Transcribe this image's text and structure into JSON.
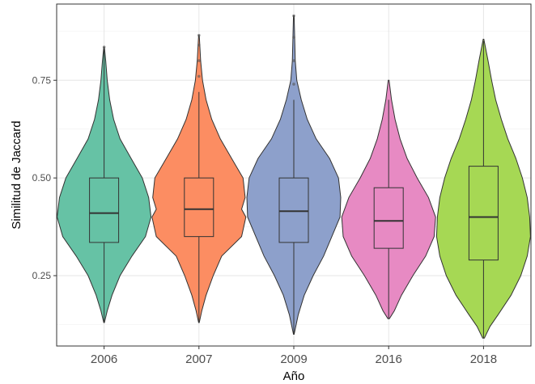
{
  "chart_data": {
    "type": "violin",
    "xlabel": "Año",
    "ylabel": "Similitud de Jaccard",
    "categories": [
      "2006",
      "2007",
      "2009",
      "2016",
      "2018"
    ],
    "ylim": [
      0.07,
      0.945
    ],
    "yticks": [
      0.25,
      0.5,
      0.75
    ],
    "ytick_labels": [
      "0.25",
      "0.50",
      "0.75"
    ],
    "grid": true,
    "legend": "none",
    "series": [
      {
        "category": "2006",
        "color": "#66c2a5",
        "box": {
          "q1": 0.335,
          "median": 0.41,
          "q3": 0.5,
          "whisker_low": 0.13,
          "whisker_high": 0.83
        },
        "outliers": [
          0.835
        ],
        "density": [
          [
            0.13,
            0.002
          ],
          [
            0.16,
            0.02
          ],
          [
            0.2,
            0.05
          ],
          [
            0.25,
            0.1
          ],
          [
            0.3,
            0.175
          ],
          [
            0.35,
            0.26
          ],
          [
            0.4,
            0.295
          ],
          [
            0.45,
            0.28
          ],
          [
            0.5,
            0.24
          ],
          [
            0.55,
            0.17
          ],
          [
            0.6,
            0.1
          ],
          [
            0.65,
            0.06
          ],
          [
            0.7,
            0.035
          ],
          [
            0.75,
            0.02
          ],
          [
            0.8,
            0.01
          ],
          [
            0.835,
            0.002
          ]
        ]
      },
      {
        "category": "2007",
        "color": "#fc8d62",
        "box": {
          "q1": 0.35,
          "median": 0.42,
          "q3": 0.5,
          "whisker_low": 0.13,
          "whisker_high": 0.72
        },
        "outliers": [
          0.76,
          0.8,
          0.84,
          0.865
        ],
        "density": [
          [
            0.13,
            0.002
          ],
          [
            0.16,
            0.02
          ],
          [
            0.2,
            0.05
          ],
          [
            0.25,
            0.1
          ],
          [
            0.3,
            0.16
          ],
          [
            0.35,
            0.3
          ],
          [
            0.4,
            0.33
          ],
          [
            0.42,
            0.3
          ],
          [
            0.45,
            0.325
          ],
          [
            0.5,
            0.31
          ],
          [
            0.55,
            0.23
          ],
          [
            0.6,
            0.15
          ],
          [
            0.65,
            0.09
          ],
          [
            0.7,
            0.05
          ],
          [
            0.75,
            0.025
          ],
          [
            0.8,
            0.012
          ],
          [
            0.865,
            0.002
          ]
        ]
      },
      {
        "category": "2009",
        "color": "#8da0cb",
        "box": {
          "q1": 0.335,
          "median": 0.415,
          "q3": 0.5,
          "whisker_low": 0.1,
          "whisker_high": 0.7
        },
        "outliers": [
          0.74,
          0.8,
          0.86,
          0.915
        ],
        "density": [
          [
            0.1,
            0.002
          ],
          [
            0.15,
            0.03
          ],
          [
            0.2,
            0.07
          ],
          [
            0.25,
            0.13
          ],
          [
            0.3,
            0.2
          ],
          [
            0.35,
            0.255
          ],
          [
            0.4,
            0.31
          ],
          [
            0.45,
            0.315
          ],
          [
            0.5,
            0.3
          ],
          [
            0.55,
            0.24
          ],
          [
            0.6,
            0.15
          ],
          [
            0.65,
            0.09
          ],
          [
            0.7,
            0.05
          ],
          [
            0.75,
            0.02
          ],
          [
            0.8,
            0.01
          ],
          [
            0.915,
            0.002
          ]
        ]
      },
      {
        "category": "2016",
        "color": "#e78ac3",
        "box": {
          "q1": 0.32,
          "median": 0.39,
          "q3": 0.475,
          "whisker_low": 0.14,
          "whisker_high": 0.7
        },
        "outliers": [],
        "density": [
          [
            0.14,
            0.005
          ],
          [
            0.16,
            0.04
          ],
          [
            0.2,
            0.09
          ],
          [
            0.25,
            0.17
          ],
          [
            0.3,
            0.26
          ],
          [
            0.35,
            0.32
          ],
          [
            0.4,
            0.33
          ],
          [
            0.45,
            0.28
          ],
          [
            0.5,
            0.2
          ],
          [
            0.55,
            0.13
          ],
          [
            0.6,
            0.08
          ],
          [
            0.65,
            0.045
          ],
          [
            0.7,
            0.02
          ],
          [
            0.75,
            0.003
          ]
        ]
      },
      {
        "category": "2018",
        "color": "#a6d854",
        "box": {
          "q1": 0.29,
          "median": 0.4,
          "q3": 0.53,
          "whisker_low": 0.09,
          "whisker_high": 0.85
        },
        "outliers": [],
        "density": [
          [
            0.09,
            0.005
          ],
          [
            0.12,
            0.04
          ],
          [
            0.15,
            0.09
          ],
          [
            0.2,
            0.17
          ],
          [
            0.25,
            0.23
          ],
          [
            0.3,
            0.27
          ],
          [
            0.35,
            0.29
          ],
          [
            0.4,
            0.285
          ],
          [
            0.45,
            0.27
          ],
          [
            0.5,
            0.24
          ],
          [
            0.55,
            0.2
          ],
          [
            0.6,
            0.15
          ],
          [
            0.65,
            0.11
          ],
          [
            0.7,
            0.075
          ],
          [
            0.75,
            0.05
          ],
          [
            0.8,
            0.028
          ],
          [
            0.855,
            0.002
          ]
        ]
      }
    ]
  }
}
